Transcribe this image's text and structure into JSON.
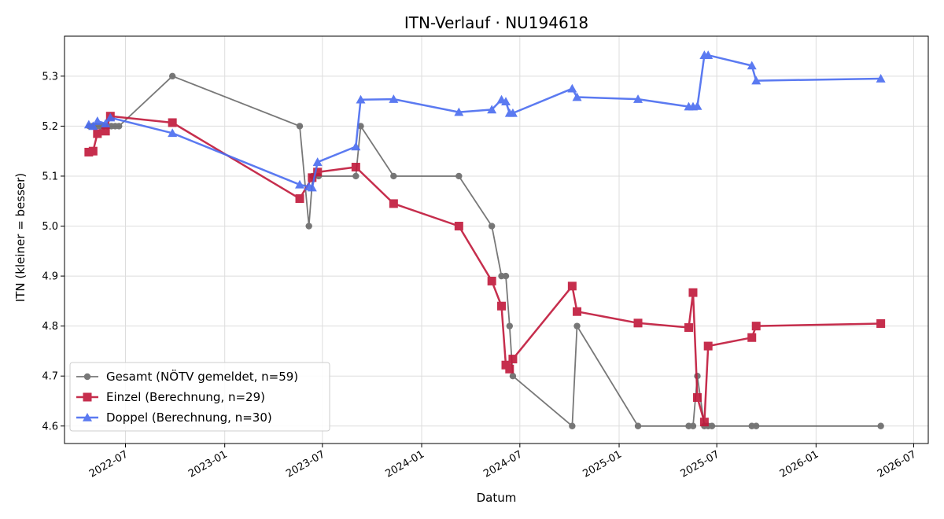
{
  "chart_data": {
    "type": "line",
    "title": "ITN-Verlauf · NU194618",
    "xlabel": "Datum",
    "ylabel": "ITN  (kleiner = besser)",
    "x_axis_type": "date",
    "xlim": [
      "2022-03-10",
      "2026-07-28"
    ],
    "ylim": [
      4.565,
      5.38
    ],
    "x_ticks": [
      "2022-07-01",
      "2023-01-01",
      "2023-07-01",
      "2024-01-01",
      "2024-07-01",
      "2025-01-01",
      "2025-07-01",
      "2026-01-01",
      "2026-07-01"
    ],
    "x_tick_labels": [
      "2022-07",
      "2023-01",
      "2023-07",
      "2024-01",
      "2024-07",
      "2025-01",
      "2025-07",
      "2026-01",
      "2026-07"
    ],
    "y_ticks": [
      4.6,
      4.7,
      4.8,
      4.9,
      5.0,
      5.1,
      5.2,
      5.3
    ],
    "y_tick_labels": [
      "4.6",
      "4.7",
      "4.8",
      "4.9",
      "5.0",
      "5.1",
      "5.2",
      "5.3"
    ],
    "grid": true,
    "legend_position": "lower-left",
    "series": [
      {
        "name": "Gesamt (NÖTV gemeldet, n=59)",
        "color": "#404040",
        "marker": "circle",
        "points": [
          [
            "2022-04-25",
            5.2
          ],
          [
            "2022-05-01",
            5.2
          ],
          [
            "2022-05-08",
            5.2
          ],
          [
            "2022-05-15",
            5.2
          ],
          [
            "2022-05-22",
            5.2
          ],
          [
            "2022-05-29",
            5.2
          ],
          [
            "2022-06-05",
            5.2
          ],
          [
            "2022-06-12",
            5.2
          ],
          [
            "2022-06-19",
            5.2
          ],
          [
            "2022-09-26",
            5.3
          ],
          [
            "2023-05-20",
            5.2
          ],
          [
            "2023-06-06",
            5.0
          ],
          [
            "2023-06-13",
            5.1
          ],
          [
            "2023-06-24",
            5.1
          ],
          [
            "2023-09-01",
            5.1
          ],
          [
            "2023-09-10",
            5.2
          ],
          [
            "2023-11-10",
            5.1
          ],
          [
            "2024-03-10",
            5.1
          ],
          [
            "2024-05-10",
            5.0
          ],
          [
            "2024-05-28",
            4.9
          ],
          [
            "2024-06-05",
            4.9
          ],
          [
            "2024-06-12",
            4.8
          ],
          [
            "2024-06-18",
            4.7
          ],
          [
            "2024-10-06",
            4.6
          ],
          [
            "2024-10-15",
            4.8
          ],
          [
            "2025-02-05",
            4.6
          ],
          [
            "2025-05-10",
            4.6
          ],
          [
            "2025-05-18",
            4.6
          ],
          [
            "2025-05-26",
            4.7
          ],
          [
            "2025-06-08",
            4.6
          ],
          [
            "2025-06-15",
            4.6
          ],
          [
            "2025-06-22",
            4.6
          ],
          [
            "2025-09-04",
            4.6
          ],
          [
            "2025-09-12",
            4.6
          ],
          [
            "2026-05-01",
            4.6
          ]
        ]
      },
      {
        "name": "Einzel (Berechnung, n=29)",
        "color": "#c0183a",
        "marker": "square",
        "points": [
          [
            "2022-04-24",
            5.148
          ],
          [
            "2022-05-02",
            5.15
          ],
          [
            "2022-05-10",
            5.185
          ],
          [
            "2022-05-25",
            5.19
          ],
          [
            "2022-06-03",
            5.22
          ],
          [
            "2022-09-26",
            5.207
          ],
          [
            "2023-05-20",
            5.055
          ],
          [
            "2023-06-12",
            5.097
          ],
          [
            "2023-06-22",
            5.108
          ],
          [
            "2023-09-01",
            5.118
          ],
          [
            "2023-11-10",
            5.045
          ],
          [
            "2024-03-10",
            5.0
          ],
          [
            "2024-05-10",
            4.89
          ],
          [
            "2024-05-28",
            4.84
          ],
          [
            "2024-06-05",
            4.722
          ],
          [
            "2024-06-12",
            4.714
          ],
          [
            "2024-06-18",
            4.734
          ],
          [
            "2024-10-06",
            4.88
          ],
          [
            "2024-10-15",
            4.829
          ],
          [
            "2025-02-05",
            4.806
          ],
          [
            "2025-05-10",
            4.797
          ],
          [
            "2025-05-18",
            4.867
          ],
          [
            "2025-05-26",
            4.657
          ],
          [
            "2025-06-08",
            4.608
          ],
          [
            "2025-06-15",
            4.76
          ],
          [
            "2025-09-04",
            4.777
          ],
          [
            "2025-09-12",
            4.8
          ],
          [
            "2026-05-01",
            4.805
          ]
        ]
      },
      {
        "name": "Doppel (Berechnung, n=30)",
        "color": "#4a6cf0",
        "marker": "triangle",
        "points": [
          [
            "2022-04-24",
            5.203
          ],
          [
            "2022-05-02",
            5.2
          ],
          [
            "2022-05-10",
            5.21
          ],
          [
            "2022-05-25",
            5.205
          ],
          [
            "2022-06-03",
            5.217
          ],
          [
            "2022-09-26",
            5.186
          ],
          [
            "2023-05-20",
            5.083
          ],
          [
            "2023-06-06",
            5.079
          ],
          [
            "2023-06-12",
            5.077
          ],
          [
            "2023-06-22",
            5.128
          ],
          [
            "2023-09-01",
            5.159
          ],
          [
            "2023-09-10",
            5.253
          ],
          [
            "2023-11-10",
            5.254
          ],
          [
            "2024-03-10",
            5.228
          ],
          [
            "2024-05-10",
            5.233
          ],
          [
            "2024-05-28",
            5.253
          ],
          [
            "2024-06-05",
            5.249
          ],
          [
            "2024-06-12",
            5.226
          ],
          [
            "2024-06-18",
            5.226
          ],
          [
            "2024-10-06",
            5.275
          ],
          [
            "2024-10-15",
            5.258
          ],
          [
            "2025-02-05",
            5.254
          ],
          [
            "2025-05-10",
            5.239
          ],
          [
            "2025-05-18",
            5.239
          ],
          [
            "2025-05-26",
            5.24
          ],
          [
            "2025-06-08",
            5.342
          ],
          [
            "2025-06-15",
            5.342
          ],
          [
            "2025-09-04",
            5.321
          ],
          [
            "2025-09-12",
            5.291
          ],
          [
            "2026-05-01",
            5.295
          ]
        ]
      }
    ]
  }
}
